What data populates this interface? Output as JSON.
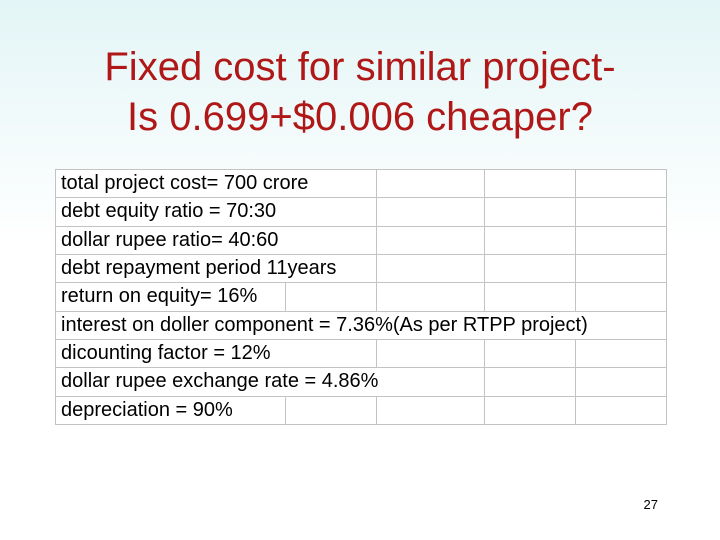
{
  "slide": {
    "title_line1": "Fixed cost for similar project-",
    "title_line2": "Is 0.699+$0.006 cheaper?",
    "title_color": "#b01818",
    "slide_number": "27"
  },
  "table": {
    "rows": [
      "total project cost= 700 crore",
      "debt equity ratio = 70:30",
      "dollar rupee ratio= 40:60",
      "debt repayment period 11years",
      "return on equity= 16%",
      "interest on doller component = 7.36%(As per RTPP project)",
      "dicounting factor = 12%",
      "dollar rupee exchange rate = 4.86%",
      "depreciation = 90%"
    ]
  }
}
